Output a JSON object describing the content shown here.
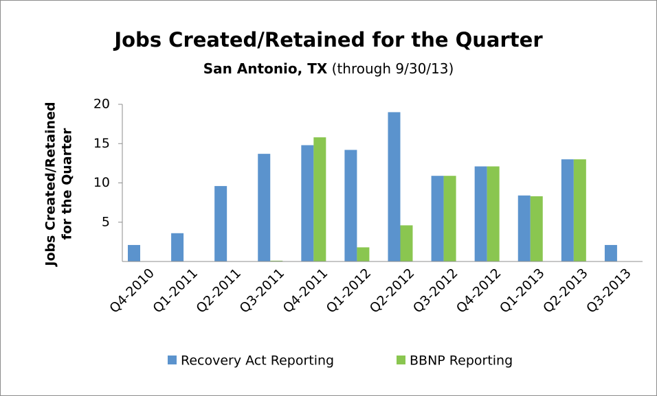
{
  "chart_data": {
    "type": "bar",
    "title": "Jobs Created/Retained for the Quarter",
    "subtitle_bold": "San Antonio, TX",
    "subtitle": "(through 9/30/13)",
    "y_label": [
      "Jobs Created/Retained",
      "for the Quarter"
    ],
    "categories": [
      "Q4-2010",
      "Q1-2011",
      "Q2-2011",
      "Q3-2011",
      "Q4-2011",
      "Q1-2012",
      "Q2-2012",
      "Q3-2012",
      "Q4-2012",
      "Q1-2013",
      "Q2-2013",
      "Q3-2013"
    ],
    "series": [
      {
        "name": "Recovery Act Reporting",
        "color": "#5b93cd",
        "values": [
          2.1,
          3.6,
          9.6,
          13.7,
          14.8,
          14.2,
          19,
          10.9,
          12.1,
          8.4,
          13,
          2.1
        ]
      },
      {
        "name": "BBNP Reporting",
        "color": "#8ac650",
        "values": [
          0,
          0,
          0,
          0.1,
          15.8,
          1.8,
          4.6,
          10.9,
          12.1,
          8.3,
          13,
          0
        ]
      }
    ],
    "ylim": [
      0,
      20
    ],
    "yticks": [
      5,
      10,
      15,
      20
    ],
    "grid": false,
    "legend": "bottom"
  }
}
